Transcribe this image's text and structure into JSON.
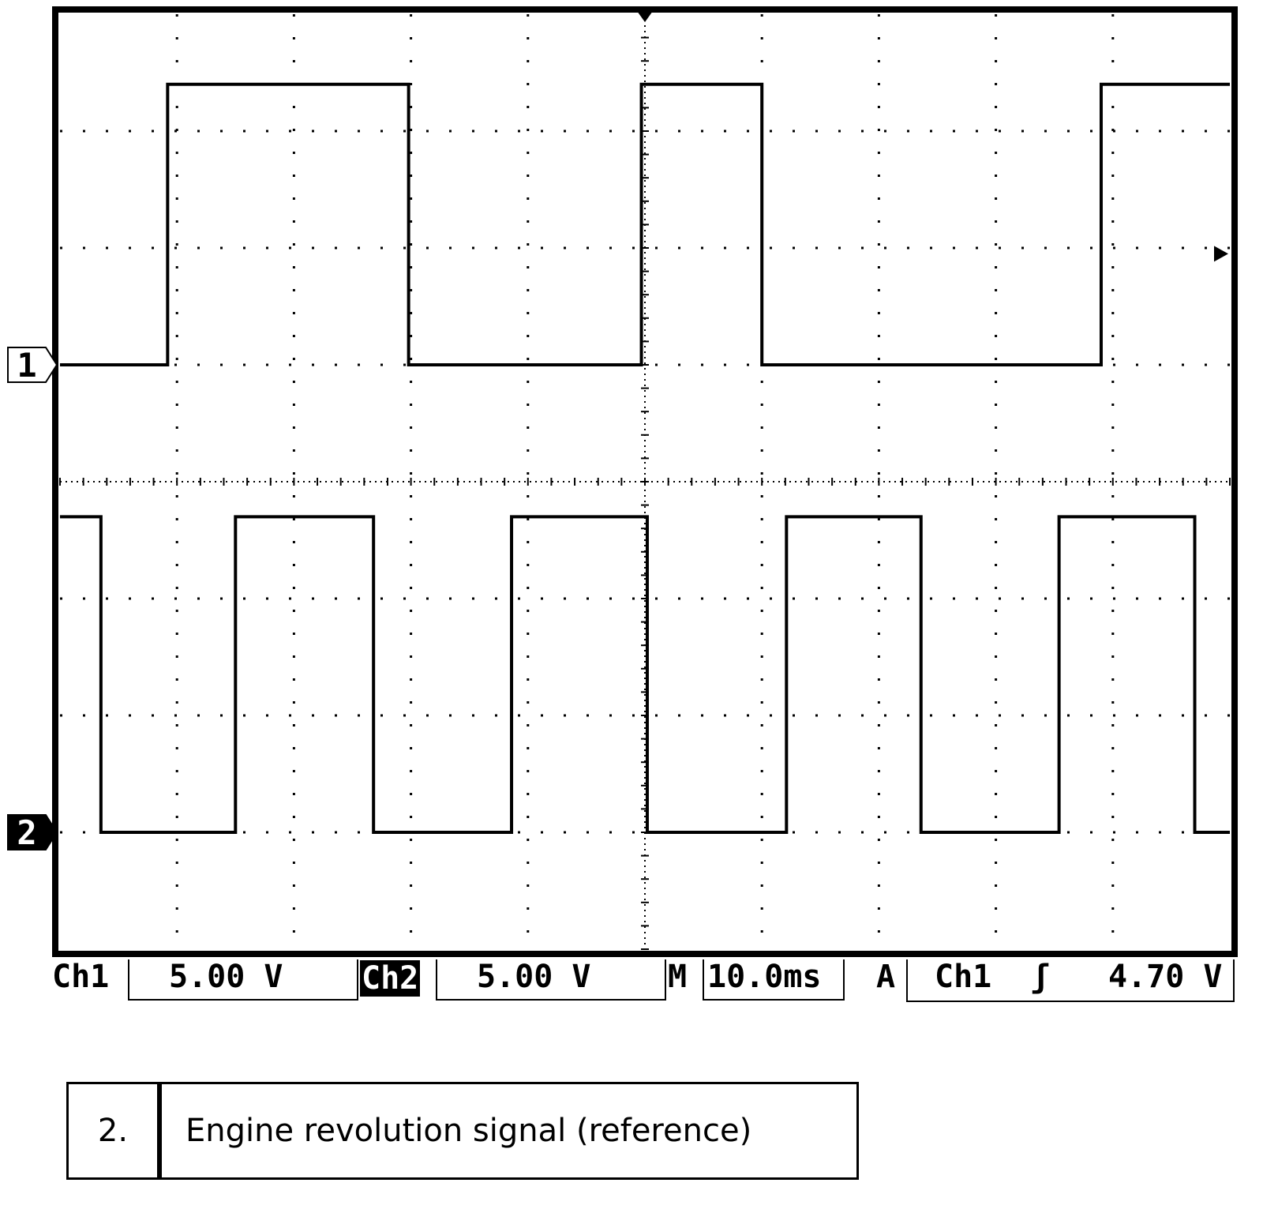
{
  "chart_data": {
    "type": "line",
    "title": "",
    "grid": true,
    "divisions": {
      "x": 10,
      "y": 8
    },
    "channel_markers": [
      "1",
      "2"
    ],
    "series": [
      {
        "name": "Ch1",
        "marker": "1",
        "low": 0.0,
        "high": 2.4,
        "transitions": [
          {
            "t": 0.0,
            "state": "low"
          },
          {
            "t": 0.92,
            "state": "high"
          },
          {
            "t": 2.98,
            "state": "low"
          },
          {
            "t": 4.97,
            "state": "high"
          },
          {
            "t": 6.0,
            "state": "low"
          },
          {
            "t": 8.9,
            "state": "high"
          }
        ]
      },
      {
        "name": "Ch2",
        "marker": "2",
        "low": 0.0,
        "high": 2.7,
        "transitions": [
          {
            "t": 0.0,
            "state": "high"
          },
          {
            "t": 0.35,
            "state": "low"
          },
          {
            "t": 1.5,
            "state": "high"
          },
          {
            "t": 2.68,
            "state": "low"
          },
          {
            "t": 3.86,
            "state": "high"
          },
          {
            "t": 5.02,
            "state": "low"
          },
          {
            "t": 6.21,
            "state": "high"
          },
          {
            "t": 7.36,
            "state": "low"
          },
          {
            "t": 8.54,
            "state": "high"
          },
          {
            "t": 9.7,
            "state": "low"
          }
        ]
      }
    ]
  },
  "readouts": {
    "ch1_label": "Ch1",
    "ch1_scale": "5.00 V",
    "ch2_label": "Ch2",
    "ch2_scale": "5.00 V",
    "timebase_label": "M",
    "timebase": "10.0ms",
    "trigger_label": "A",
    "trigger_source": "Ch1",
    "trigger_slope": "ʃ",
    "trigger_level": "4.70 V"
  },
  "caption": {
    "number": "2.",
    "text": "Engine revolution signal (reference)"
  },
  "colors": {
    "trace": "#000000",
    "background": "#ffffff"
  }
}
